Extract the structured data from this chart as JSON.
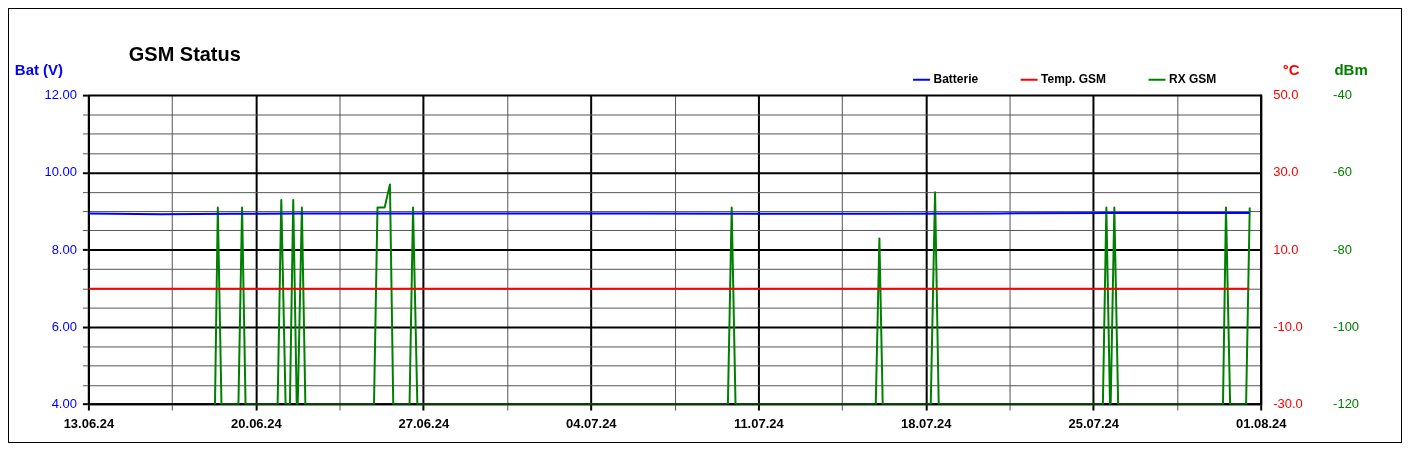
{
  "chart_data": {
    "type": "line",
    "title": "GSM Status",
    "ylabel": "Bat (V)",
    "y2label": "°C",
    "y3label": "dBm",
    "xlim": [
      "--06-13",
      "--08-01"
    ],
    "xticks": [
      {
        "value": "--06-13",
        "label": "13.06.24"
      },
      {
        "value": "--06-16T12:00",
        "label": null
      },
      {
        "value": "--06-20",
        "label": "20.06.24"
      },
      {
        "value": "--06-23T12:00",
        "label": null
      },
      {
        "value": "--06-27",
        "label": "27.06.24"
      },
      {
        "value": "--06-30T12:00",
        "label": null
      },
      {
        "value": "--07-04",
        "label": "04.07.24"
      },
      {
        "value": "--07-07T12:00",
        "label": null
      },
      {
        "value": "--07-11",
        "label": "11.07.24"
      },
      {
        "value": "--07-14T12:00",
        "label": null
      },
      {
        "value": "--07-18",
        "label": "18.07.24"
      },
      {
        "value": "--07-21T12:00",
        "label": null
      },
      {
        "value": "--07-25",
        "label": "25.07.24"
      },
      {
        "value": "--07-28T12:00",
        "label": null
      },
      {
        "value": "--08-01",
        "label": "01.08.24"
      }
    ],
    "ylim": [
      4,
      12
    ],
    "yticks": [
      {
        "value": 4,
        "label": "4.00"
      },
      {
        "value": 4.5,
        "label": null
      },
      {
        "value": 5,
        "label": null
      },
      {
        "value": 5.5,
        "label": null
      },
      {
        "value": 6,
        "label": "6.00"
      },
      {
        "value": 6.5,
        "label": null
      },
      {
        "value": 7,
        "label": null
      },
      {
        "value": 7.5,
        "label": null
      },
      {
        "value": 8,
        "label": "8.00"
      },
      {
        "value": 8.5,
        "label": null
      },
      {
        "value": 9,
        "label": null
      },
      {
        "value": 9.5,
        "label": null
      },
      {
        "value": 10,
        "label": "10.00"
      },
      {
        "value": 10.5,
        "label": null
      },
      {
        "value": 11,
        "label": null
      },
      {
        "value": 11.5,
        "label": null
      },
      {
        "value": 12,
        "label": "12.00"
      }
    ],
    "y2lim": [
      -30,
      50
    ],
    "y2ticks": [
      {
        "value": -30,
        "label": "-30.0"
      },
      {
        "value": -10,
        "label": "-10.0"
      },
      {
        "value": 10,
        "label": "10.0"
      },
      {
        "value": 30,
        "label": "30.0"
      },
      {
        "value": 50,
        "label": "50.0"
      }
    ],
    "y3lim": [
      -120,
      -40
    ],
    "y3ticks": [
      -120,
      -100,
      -80,
      -60,
      -40
    ],
    "grid": true,
    "legend": "top right",
    "marker": "none",
    "line_style": "solid",
    "series": [
      {
        "name": "Batterie",
        "color": "#0000ff",
        "axis": "y",
        "x": [
          "--06-13",
          "--06-16",
          "--06-19",
          "--06-22",
          "--06-26",
          "--07-01",
          "--07-06",
          "--07-11",
          "--07-16",
          "--07-21",
          "--07-26",
          "--07-31T12:30"
        ],
        "values": [
          8.95,
          8.93,
          8.94,
          8.95,
          8.95,
          8.95,
          8.95,
          8.94,
          8.94,
          8.95,
          8.96,
          8.96
        ]
      },
      {
        "name": "Temp. GSM",
        "color": "#ff0000",
        "axis": "y2",
        "x": [
          "--06-13",
          "--07-31T12:00"
        ],
        "values": [
          0,
          0
        ]
      },
      {
        "name": "RX GSM",
        "color": "#008000",
        "axis": "y3",
        "x": [
          "--06-18T06:30",
          "--06-18T09:20",
          "--06-18T13:00",
          "--06-19T06:00",
          "--06-19T09:40",
          "--06-19T13:10",
          "--06-20T21:20",
          "--06-21T01:00",
          "--06-21T05:20",
          "--06-21T09:40",
          "--06-21T13:00",
          "--06-21T16:30",
          "--06-21T17:30",
          "--06-21T21:40",
          "--06-22T01:10",
          "--06-24T22:00",
          "--06-25T01:30",
          "--06-25T08:40",
          "--06-25T14:00",
          "--06-25T17:20",
          "--06-26T09:40",
          "--06-26T13:10",
          "--06-26T17:30",
          "--07-09T17:00",
          "--07-09T20:50",
          "--07-10T00:40",
          "--07-15T21:20",
          "--07-16T01:00",
          "--07-16T04:20",
          "--07-18T04:30",
          "--07-18T08:50",
          "--07-18T12:30",
          "--07-25T09:10",
          "--07-25T12:40",
          "--07-25T16:20",
          "--07-25T17:00",
          "--07-25T20:40",
          "--07-26T00:30",
          "--07-30T09:40",
          "--07-30T12:40",
          "--07-30T16:50",
          "--07-31T08:50",
          "--07-31T12:30"
        ],
        "values": [
          -120,
          -69,
          -120,
          -120,
          -69,
          -120,
          -120,
          -67,
          -120,
          -120,
          -67,
          -120,
          -120,
          -69,
          -120,
          -120,
          -69,
          -69,
          -63,
          -120,
          -120,
          -69,
          -120,
          -120,
          -69,
          -120,
          -120,
          -77,
          -120,
          -120,
          -65,
          -120,
          -120,
          -69,
          -120,
          -120,
          -69,
          -120,
          -120,
          -69,
          -120,
          -120,
          -69
        ]
      }
    ]
  }
}
